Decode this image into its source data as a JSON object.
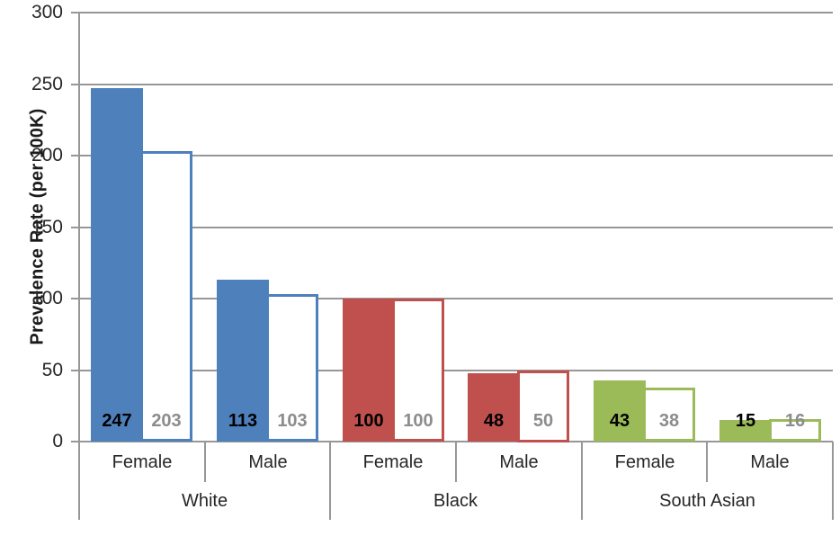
{
  "chart_data": {
    "type": "bar",
    "title": "",
    "xlabel": "",
    "ylabel": "Prevalence Rate (per 100K)",
    "ylim": [
      0,
      300
    ],
    "yticks": [
      0,
      50,
      100,
      150,
      200,
      250,
      300
    ],
    "grid": "horizontal gridlines at every 50 units",
    "legend": "none",
    "bar_style": "each subcategory has a pair of bars: a solid filled bar (black value label) and a white hollow bar outlined in the group color (gray value label); value labels sit near the baseline",
    "groups": [
      {
        "label": "White",
        "color": "#4E80BC",
        "items": [
          {
            "label": "Female",
            "filled": 247,
            "hollow": 203
          },
          {
            "label": "Male",
            "filled": 113,
            "hollow": 103
          }
        ]
      },
      {
        "label": "Black",
        "color": "#C0504D",
        "items": [
          {
            "label": "Female",
            "filled": 100,
            "hollow": 100
          },
          {
            "label": "Male",
            "filled": 48,
            "hollow": 50
          }
        ]
      },
      {
        "label": "South Asian",
        "color": "#9BBB59",
        "items": [
          {
            "label": "Female",
            "filled": 43,
            "hollow": 38
          },
          {
            "label": "Male",
            "filled": 15,
            "hollow": 16
          }
        ]
      }
    ],
    "colors": {
      "axis_and_grid": "#979797",
      "tick_label": "#262626",
      "category_label": "#262626",
      "filled_value_label": "#000000",
      "hollow_value_label": "#8C8C8C",
      "background": "#FFFFFF"
    }
  }
}
